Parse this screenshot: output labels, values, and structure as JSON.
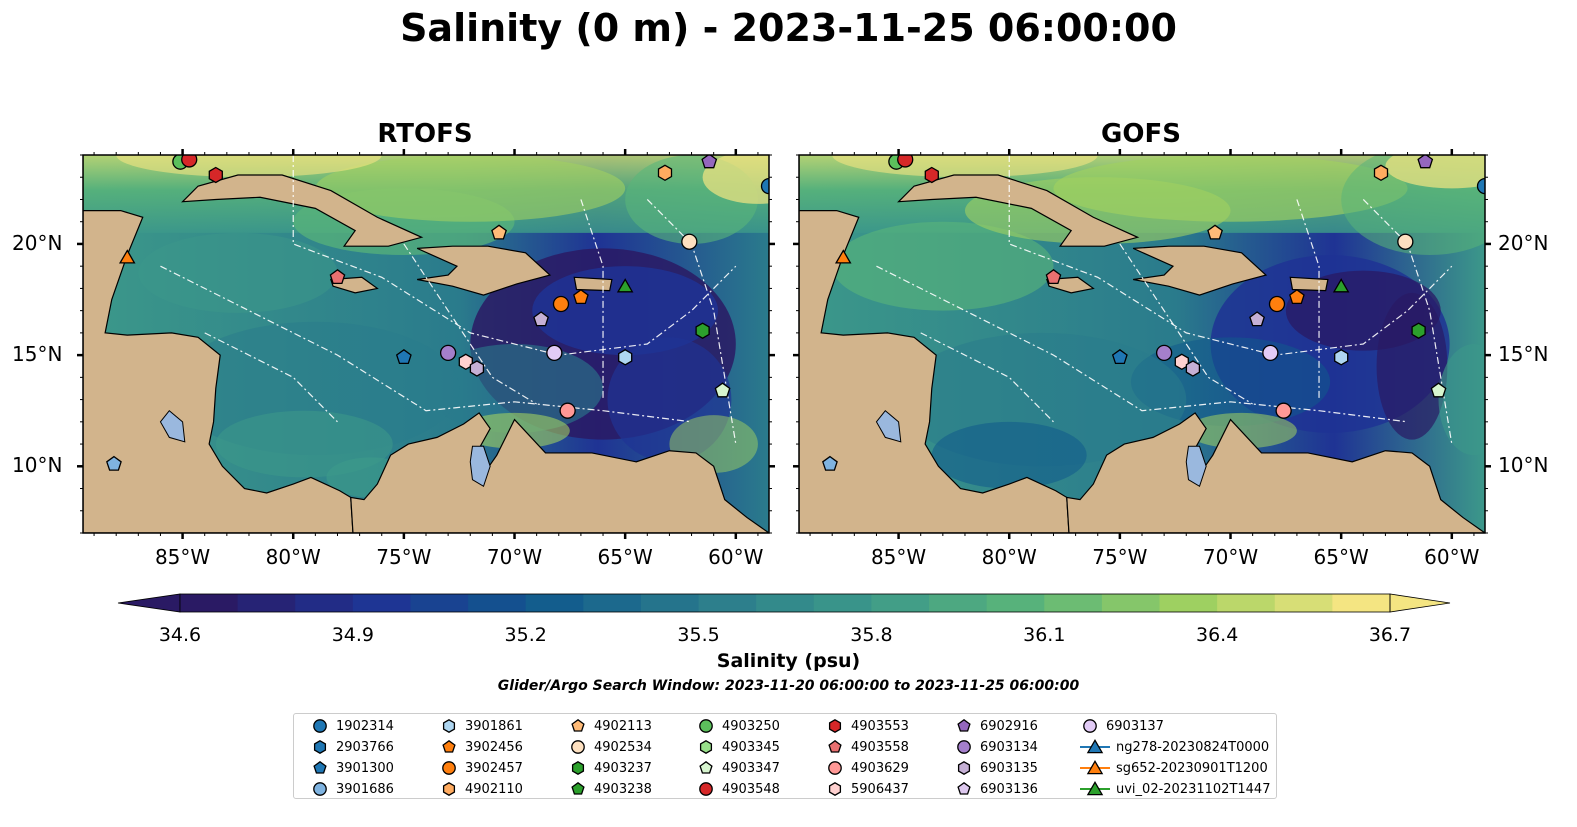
{
  "title": "Salinity (0 m) - 2023-11-25 06:00:00",
  "panels": [
    {
      "title": "RTOFS"
    },
    {
      "title": "GOFS"
    }
  ],
  "axes": {
    "lon_ticks": [
      "85°W",
      "80°W",
      "75°W",
      "70°W",
      "65°W",
      "60°W"
    ],
    "lat_ticks": [
      "20°N",
      "15°N",
      "10°N"
    ],
    "lon_range": [
      -89.5,
      -58.5
    ],
    "lat_range": [
      7.0,
      24.0
    ]
  },
  "colorbar": {
    "label": "Salinity (psu)",
    "min": 34.6,
    "max": 36.7,
    "ticks": [
      "34.6",
      "34.9",
      "35.2",
      "35.5",
      "35.8",
      "36.1",
      "36.4",
      "36.7"
    ],
    "extend": "both",
    "colormap": "haline",
    "colors": [
      "#2a1a64",
      "#1f3394",
      "#105a8d",
      "#2a7b8c",
      "#3c988a",
      "#5ab579",
      "#a2d160",
      "#f4e582"
    ]
  },
  "search_window": "Glider/Argo Search Window: 2023-11-20 06:00:00 to 2023-11-25 06:00:00",
  "land_color": "#d2b48c",
  "lake_color": "#9ab8de",
  "legend": {
    "items": [
      {
        "label": "1902314",
        "marker": "circle",
        "color": "#1f77b4"
      },
      {
        "label": "2903766",
        "marker": "hexagon",
        "color": "#1f77b4"
      },
      {
        "label": "3901300",
        "marker": "pentagon",
        "color": "#1f77b4"
      },
      {
        "label": "3901686",
        "marker": "circle",
        "color": "#7fb3e0"
      },
      {
        "label": "3901861",
        "marker": "hexagon",
        "color": "#aed6f1"
      },
      {
        "label": "3902456",
        "marker": "pentagon",
        "color": "#ff7f0e"
      },
      {
        "label": "3902457",
        "marker": "circle",
        "color": "#ff7f0e"
      },
      {
        "label": "4902110",
        "marker": "hexagon",
        "color": "#ffab60"
      },
      {
        "label": "4902113",
        "marker": "pentagon",
        "color": "#ffbb78"
      },
      {
        "label": "4902534",
        "marker": "circle",
        "color": "#fde0c0"
      },
      {
        "label": "4903237",
        "marker": "hexagon",
        "color": "#2ca02c"
      },
      {
        "label": "4903238",
        "marker": "pentagon",
        "color": "#2ca02c"
      },
      {
        "label": "4903250",
        "marker": "circle",
        "color": "#5cc05c"
      },
      {
        "label": "4903345",
        "marker": "hexagon",
        "color": "#98df8a"
      },
      {
        "label": "4903347",
        "marker": "pentagon",
        "color": "#d7f5cf"
      },
      {
        "label": "4903548",
        "marker": "circle",
        "color": "#d62728"
      },
      {
        "label": "4903553",
        "marker": "hexagon",
        "color": "#d62728"
      },
      {
        "label": "4903558",
        "marker": "pentagon",
        "color": "#e97070"
      },
      {
        "label": "4903629",
        "marker": "circle",
        "color": "#ff9896"
      },
      {
        "label": "5906437",
        "marker": "hexagon",
        "color": "#ffd1d0"
      },
      {
        "label": "6902916",
        "marker": "pentagon",
        "color": "#9467bd"
      },
      {
        "label": "6903134",
        "marker": "circle",
        "color": "#a47fcb"
      },
      {
        "label": "6903135",
        "marker": "hexagon",
        "color": "#c5b0d5"
      },
      {
        "label": "6903136",
        "marker": "pentagon",
        "color": "#ddc8ee"
      },
      {
        "label": "6903137",
        "marker": "circle",
        "color": "#e2cbf6"
      },
      {
        "label": "ng278-20230824T0000",
        "marker": "triangle-line",
        "color": "#1f77b4"
      },
      {
        "label": "sg652-20230901T1200",
        "marker": "triangle-line",
        "color": "#ff7f0e"
      },
      {
        "label": "uvi_02-20231102T1447",
        "marker": "triangle-line",
        "color": "#2ca02c"
      }
    ]
  },
  "map_markers": [
    {
      "lon": -85.1,
      "lat": 23.7,
      "marker": "circle",
      "color": "#5cc05c"
    },
    {
      "lon": -84.7,
      "lat": 23.8,
      "marker": "circle",
      "color": "#d62728"
    },
    {
      "lon": -83.5,
      "lat": 23.1,
      "marker": "hexagon",
      "color": "#d62728"
    },
    {
      "lon": -63.2,
      "lat": 23.2,
      "marker": "hexagon",
      "color": "#ffab60"
    },
    {
      "lon": -61.2,
      "lat": 23.7,
      "marker": "pentagon",
      "color": "#9467bd"
    },
    {
      "lon": -58.5,
      "lat": 22.6,
      "marker": "circle",
      "color": "#1f77b4"
    },
    {
      "lon": -70.7,
      "lat": 20.5,
      "marker": "pentagon",
      "color": "#ffbb78"
    },
    {
      "lon": -62.1,
      "lat": 20.1,
      "marker": "circle",
      "color": "#fde0c0"
    },
    {
      "lon": -87.5,
      "lat": 19.4,
      "marker": "triangle",
      "color": "#ff7f0e"
    },
    {
      "lon": -78.0,
      "lat": 18.5,
      "marker": "pentagon",
      "color": "#e97070"
    },
    {
      "lon": -67.9,
      "lat": 17.3,
      "marker": "circle",
      "color": "#ff7f0e"
    },
    {
      "lon": -67.0,
      "lat": 17.6,
      "marker": "pentagon",
      "color": "#ff7f0e"
    },
    {
      "lon": -65.0,
      "lat": 18.1,
      "marker": "triangle",
      "color": "#2ca02c"
    },
    {
      "lon": -68.8,
      "lat": 16.6,
      "marker": "pentagon",
      "color": "#c5b0d5"
    },
    {
      "lon": -61.5,
      "lat": 16.1,
      "marker": "hexagon",
      "color": "#2ca02c"
    },
    {
      "lon": -75.0,
      "lat": 14.9,
      "marker": "pentagon",
      "color": "#1f77b4"
    },
    {
      "lon": -73.0,
      "lat": 15.1,
      "marker": "circle",
      "color": "#a47fcb"
    },
    {
      "lon": -72.2,
      "lat": 14.7,
      "marker": "hexagon",
      "color": "#ffd1d0"
    },
    {
      "lon": -71.7,
      "lat": 14.4,
      "marker": "hexagon",
      "color": "#c5b0d5"
    },
    {
      "lon": -68.2,
      "lat": 15.1,
      "marker": "circle",
      "color": "#e2cbf6"
    },
    {
      "lon": -65.0,
      "lat": 14.9,
      "marker": "hexagon",
      "color": "#aed6f1"
    },
    {
      "lon": -60.6,
      "lat": 13.4,
      "marker": "pentagon",
      "color": "#d7f5cf"
    },
    {
      "lon": -67.6,
      "lat": 12.5,
      "marker": "circle",
      "color": "#ff9896"
    },
    {
      "lon": -88.1,
      "lat": 10.1,
      "marker": "pentagon",
      "color": "#7fb3e0"
    }
  ]
}
